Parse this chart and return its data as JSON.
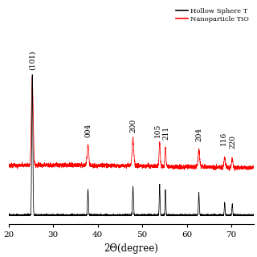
{
  "xlabel": "2Θ(degree)",
  "xlim": [
    20,
    75
  ],
  "legend_entries": [
    "Hollow Sphere T",
    "Nanoparticle TiO"
  ],
  "legend_colors": [
    "black",
    "red"
  ],
  "peak_labels": [
    {
      "label": "(101)",
      "x": 25.3,
      "fontsize": 6.5
    },
    {
      "label": "004",
      "x": 37.8,
      "fontsize": 6.5
    },
    {
      "label": "200",
      "x": 47.9,
      "fontsize": 6.5
    },
    {
      "label": "105",
      "x": 53.9,
      "fontsize": 6.5
    },
    {
      "label": "211",
      "x": 55.2,
      "fontsize": 6.5
    },
    {
      "label": "204",
      "x": 62.7,
      "fontsize": 6.5
    },
    {
      "label": "116",
      "x": 68.5,
      "fontsize": 6.5
    },
    {
      "label": "220",
      "x": 70.2,
      "fontsize": 6.5
    }
  ],
  "xticks": [
    20,
    30,
    40,
    50,
    60,
    70
  ],
  "background_color": "#ffffff"
}
